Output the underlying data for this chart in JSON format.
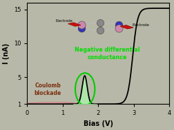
{
  "xlabel": "Bias (V)",
  "ylabel": "I (nA)",
  "xlim": [
    0,
    4
  ],
  "ylim": [
    1,
    16
  ],
  "yticks": [
    1,
    5,
    10,
    15
  ],
  "xticks": [
    0,
    1,
    2,
    3,
    4
  ],
  "bg_color": "#b8b8a8",
  "plot_bg_color": "#b8b8a8",
  "curve_color": "#000000",
  "ndc_text": "Negative differential\nconductance",
  "ndc_color": "#00dd00",
  "cb_text": "Coulomb\nblockade",
  "cb_color": "#7b3010",
  "atom_colors": [
    "#3030aa",
    "#888888",
    "#3030aa",
    "#888888",
    "#cc88aa",
    "#888888"
  ],
  "atom_top": "#888888",
  "bond_color": "#aaaaaa",
  "electrode_color": "#cc1111",
  "electrode_edge": "#880000"
}
